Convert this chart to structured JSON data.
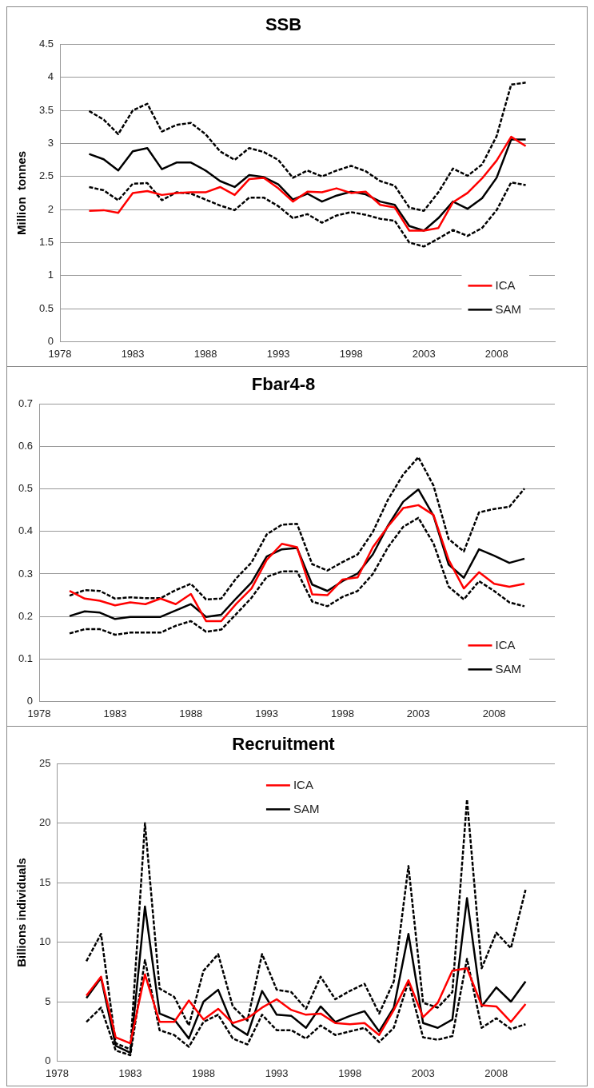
{
  "chart_data": [
    {
      "type": "line",
      "title": "SSB",
      "ylabel": "Million  tonnes",
      "x": [
        1980,
        1981,
        1982,
        1983,
        1984,
        1985,
        1986,
        1987,
        1988,
        1989,
        1990,
        1991,
        1992,
        1993,
        1994,
        1995,
        1996,
        1997,
        1998,
        1999,
        2000,
        2001,
        2002,
        2003,
        2004,
        2005,
        2006,
        2007,
        2008,
        2009,
        2010
      ],
      "xlim": [
        1978,
        2012
      ],
      "xticks": [
        1978,
        1983,
        1988,
        1993,
        1998,
        2003,
        2008
      ],
      "ylim": [
        0,
        4.5
      ],
      "yticks": [
        0,
        0.5,
        1,
        1.5,
        2,
        2.5,
        3,
        3.5,
        4,
        4.5
      ],
      "grid": "y",
      "legend": "bottom right",
      "marker": "none",
      "series": [
        {
          "name": "ICA",
          "color": "#ff0000",
          "values": [
            1.98,
            1.99,
            1.95,
            2.25,
            2.28,
            2.22,
            2.25,
            2.26,
            2.26,
            2.34,
            2.22,
            2.46,
            2.48,
            2.32,
            2.12,
            2.27,
            2.26,
            2.32,
            2.25,
            2.27,
            2.07,
            2.03,
            1.68,
            1.68,
            1.72,
            2.11,
            2.25,
            2.47,
            2.74,
            3.1,
            2.96
          ]
        },
        {
          "name": "SAM",
          "color": "#000000",
          "values": [
            2.84,
            2.76,
            2.59,
            2.88,
            2.93,
            2.61,
            2.71,
            2.71,
            2.59,
            2.43,
            2.34,
            2.52,
            2.49,
            2.38,
            2.15,
            2.24,
            2.12,
            2.21,
            2.27,
            2.23,
            2.12,
            2.07,
            1.75,
            1.68,
            1.87,
            2.12,
            2.01,
            2.17,
            2.48,
            3.06,
            3.06
          ]
        },
        {
          "color": "#000000",
          "line_style": "dashed",
          "values": [
            3.49,
            3.36,
            3.14,
            3.5,
            3.6,
            3.18,
            3.28,
            3.31,
            3.14,
            2.88,
            2.75,
            2.93,
            2.87,
            2.75,
            2.48,
            2.59,
            2.5,
            2.59,
            2.66,
            2.58,
            2.43,
            2.36,
            2.03,
            1.98,
            2.26,
            2.62,
            2.51,
            2.68,
            3.11,
            3.89,
            3.92
          ]
        },
        {
          "color": "#000000",
          "line_style": "dashed",
          "values": [
            2.34,
            2.29,
            2.14,
            2.39,
            2.4,
            2.14,
            2.26,
            2.24,
            2.15,
            2.06,
            1.99,
            2.18,
            2.18,
            2.05,
            1.87,
            1.93,
            1.8,
            1.91,
            1.96,
            1.92,
            1.86,
            1.83,
            1.5,
            1.44,
            1.56,
            1.69,
            1.6,
            1.72,
            1.99,
            2.41,
            2.37
          ]
        }
      ]
    },
    {
      "type": "line",
      "title": "Fbar4-8",
      "x": [
        1980,
        1981,
        1982,
        1983,
        1984,
        1985,
        1986,
        1987,
        1988,
        1989,
        1990,
        1991,
        1992,
        1993,
        1994,
        1995,
        1996,
        1997,
        1998,
        1999,
        2000,
        2001,
        2002,
        2003,
        2004,
        2005,
        2006,
        2007,
        2008,
        2009,
        2010
      ],
      "xlim": [
        1978,
        2012
      ],
      "xticks": [
        1978,
        1983,
        1988,
        1993,
        1998,
        2003,
        2008
      ],
      "ylim": [
        0,
        0.7
      ],
      "yticks": [
        0,
        0.1,
        0.2,
        0.3,
        0.4,
        0.5,
        0.6,
        0.7
      ],
      "grid": "y",
      "legend": "bottom right",
      "marker": "none",
      "series": [
        {
          "name": "ICA",
          "color": "#ff0000",
          "values": [
            0.26,
            0.242,
            0.237,
            0.226,
            0.233,
            0.229,
            0.242,
            0.229,
            0.253,
            0.189,
            0.189,
            0.23,
            0.266,
            0.333,
            0.371,
            0.363,
            0.252,
            0.25,
            0.287,
            0.292,
            0.363,
            0.412,
            0.455,
            0.462,
            0.439,
            0.333,
            0.266,
            0.304,
            0.277,
            0.27,
            0.277
          ]
        },
        {
          "name": "SAM",
          "color": "#000000",
          "values": [
            0.201,
            0.212,
            0.209,
            0.194,
            0.199,
            0.199,
            0.199,
            0.214,
            0.229,
            0.199,
            0.204,
            0.243,
            0.28,
            0.341,
            0.358,
            0.361,
            0.275,
            0.26,
            0.283,
            0.301,
            0.346,
            0.414,
            0.47,
            0.499,
            0.437,
            0.322,
            0.291,
            0.358,
            0.343,
            0.326,
            0.336
          ]
        },
        {
          "color": "#000000",
          "line_style": "dashed",
          "values": [
            0.249,
            0.262,
            0.26,
            0.242,
            0.245,
            0.243,
            0.243,
            0.262,
            0.277,
            0.24,
            0.242,
            0.29,
            0.327,
            0.393,
            0.416,
            0.418,
            0.323,
            0.308,
            0.328,
            0.346,
            0.399,
            0.475,
            0.534,
            0.575,
            0.508,
            0.382,
            0.353,
            0.445,
            0.453,
            0.458,
            0.501
          ]
        },
        {
          "color": "#000000",
          "line_style": "dashed",
          "values": [
            0.16,
            0.17,
            0.17,
            0.157,
            0.162,
            0.162,
            0.162,
            0.178,
            0.189,
            0.164,
            0.169,
            0.206,
            0.244,
            0.293,
            0.306,
            0.306,
            0.235,
            0.224,
            0.246,
            0.26,
            0.3,
            0.363,
            0.411,
            0.432,
            0.372,
            0.27,
            0.24,
            0.283,
            0.26,
            0.233,
            0.224
          ]
        }
      ]
    },
    {
      "type": "line",
      "title": "Recruitment",
      "ylabel": "Billions individuals",
      "x": [
        1980,
        1981,
        1982,
        1983,
        1984,
        1985,
        1986,
        1987,
        1988,
        1989,
        1990,
        1991,
        1992,
        1993,
        1994,
        1995,
        1996,
        1997,
        1998,
        1999,
        2000,
        2001,
        2002,
        2003,
        2004,
        2005,
        2006,
        2007,
        2008,
        2009,
        2010
      ],
      "xlim": [
        1978,
        2012
      ],
      "xticks": [
        1978,
        1983,
        1988,
        1993,
        1998,
        2003,
        2008
      ],
      "ylim": [
        0,
        25
      ],
      "yticks": [
        0,
        5,
        10,
        15,
        20,
        25
      ],
      "grid": "y",
      "legend": "top",
      "marker": "none",
      "series": [
        {
          "name": "ICA",
          "color": "#ff0000",
          "values": [
            5.5,
            7.1,
            2.0,
            1.5,
            7.3,
            3.3,
            3.3,
            5.1,
            3.5,
            4.4,
            3.2,
            3.6,
            4.5,
            5.2,
            4.3,
            3.9,
            4.0,
            3.2,
            3.1,
            3.2,
            2.2,
            4.3,
            6.8,
            3.7,
            4.9,
            7.6,
            7.8,
            4.7,
            4.6,
            3.3,
            4.8
          ]
        },
        {
          "name": "SAM",
          "color": "#000000",
          "values": [
            5.3,
            7.0,
            1.3,
            0.7,
            13.0,
            4.0,
            3.5,
            1.9,
            5.0,
            6.0,
            3.0,
            2.2,
            5.9,
            3.9,
            3.8,
            2.8,
            4.6,
            3.3,
            3.8,
            4.2,
            2.5,
            4.5,
            10.7,
            3.2,
            2.8,
            3.5,
            13.7,
            4.6,
            6.2,
            5.0,
            6.7
          ]
        },
        {
          "color": "#000000",
          "line_style": "dashed",
          "values": [
            8.4,
            10.7,
            1.5,
            1.0,
            20.0,
            6.1,
            5.4,
            3.0,
            7.6,
            9.0,
            4.6,
            3.4,
            9.0,
            6.0,
            5.8,
            4.4,
            7.1,
            5.2,
            5.9,
            6.5,
            4.0,
            6.7,
            16.4,
            4.9,
            4.5,
            5.8,
            22.0,
            7.8,
            10.8,
            9.5,
            14.4
          ]
        },
        {
          "color": "#000000",
          "line_style": "dashed",
          "values": [
            3.3,
            4.5,
            0.9,
            0.5,
            8.5,
            2.6,
            2.2,
            1.2,
            3.3,
            3.9,
            1.9,
            1.4,
            3.9,
            2.6,
            2.6,
            1.9,
            3.0,
            2.2,
            2.5,
            2.8,
            1.6,
            2.8,
            6.7,
            2.0,
            1.8,
            2.1,
            8.6,
            2.8,
            3.6,
            2.7,
            3.1
          ]
        }
      ]
    }
  ]
}
